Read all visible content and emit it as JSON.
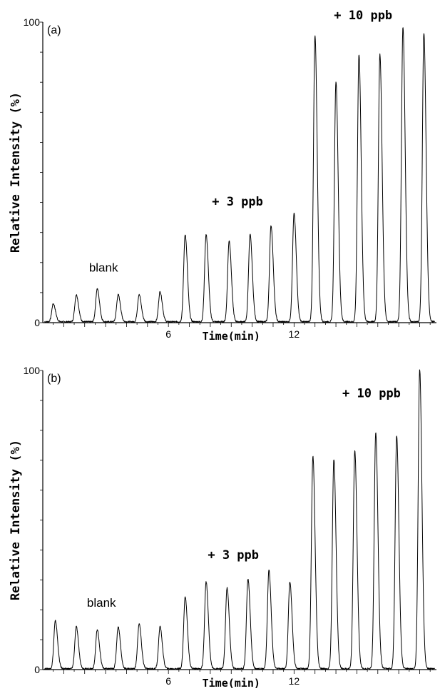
{
  "chart_data": [
    {
      "type": "line",
      "panel_label": "(a)",
      "xlabel": "Time(min)",
      "ylabel": "Relative Intensity (%)",
      "xlim": [
        0,
        18.8
      ],
      "ylim": [
        0,
        100
      ],
      "x_tick_labels": [
        6,
        12
      ],
      "y_tick_labels": [
        0,
        100
      ],
      "grid": false,
      "series": [
        {
          "peaks": [
            {
              "x": 0.5,
              "y": 6
            },
            {
              "x": 1.6,
              "y": 9
            },
            {
              "x": 2.6,
              "y": 11
            },
            {
              "x": 3.6,
              "y": 9
            },
            {
              "x": 4.6,
              "y": 9
            },
            {
              "x": 5.6,
              "y": 10
            },
            {
              "x": 6.8,
              "y": 29
            },
            {
              "x": 7.8,
              "y": 29
            },
            {
              "x": 8.9,
              "y": 27
            },
            {
              "x": 9.9,
              "y": 29
            },
            {
              "x": 10.9,
              "y": 32
            },
            {
              "x": 12.0,
              "y": 36
            },
            {
              "x": 13.0,
              "y": 95
            },
            {
              "x": 14.0,
              "y": 80
            },
            {
              "x": 15.1,
              "y": 89
            },
            {
              "x": 16.1,
              "y": 89
            },
            {
              "x": 17.2,
              "y": 98
            },
            {
              "x": 18.2,
              "y": 96
            }
          ]
        }
      ],
      "annotations": [
        {
          "text": "blank",
          "x": 2.9,
          "y": 17
        },
        {
          "text": "+ 3 ppb",
          "x": 9.3,
          "y": 39
        },
        {
          "text": "+ 10 ppb",
          "x": 15.3,
          "y": 101
        }
      ]
    },
    {
      "type": "line",
      "panel_label": "(b)",
      "xlabel": "Time(min)",
      "ylabel": "Relative Intensity (%)",
      "xlim": [
        0,
        18.8
      ],
      "ylim": [
        0,
        100
      ],
      "x_tick_labels": [
        6,
        12
      ],
      "y_tick_labels": [
        0,
        100
      ],
      "grid": false,
      "series": [
        {
          "peaks": [
            {
              "x": 0.6,
              "y": 16
            },
            {
              "x": 1.6,
              "y": 14
            },
            {
              "x": 2.6,
              "y": 13
            },
            {
              "x": 3.6,
              "y": 14
            },
            {
              "x": 4.6,
              "y": 15
            },
            {
              "x": 5.6,
              "y": 14
            },
            {
              "x": 6.8,
              "y": 24
            },
            {
              "x": 7.8,
              "y": 29
            },
            {
              "x": 8.8,
              "y": 27
            },
            {
              "x": 9.8,
              "y": 30
            },
            {
              "x": 10.8,
              "y": 33
            },
            {
              "x": 11.8,
              "y": 29
            },
            {
              "x": 12.9,
              "y": 71
            },
            {
              "x": 13.9,
              "y": 70
            },
            {
              "x": 14.9,
              "y": 73
            },
            {
              "x": 15.9,
              "y": 79
            },
            {
              "x": 16.9,
              "y": 78
            },
            {
              "x": 18.0,
              "y": 100
            }
          ]
        }
      ],
      "annotations": [
        {
          "text": "blank",
          "x": 2.8,
          "y": 21
        },
        {
          "text": "+ 3 ppb",
          "x": 9.1,
          "y": 37
        },
        {
          "text": "+ 10 ppb",
          "x": 15.7,
          "y": 91
        }
      ]
    }
  ]
}
